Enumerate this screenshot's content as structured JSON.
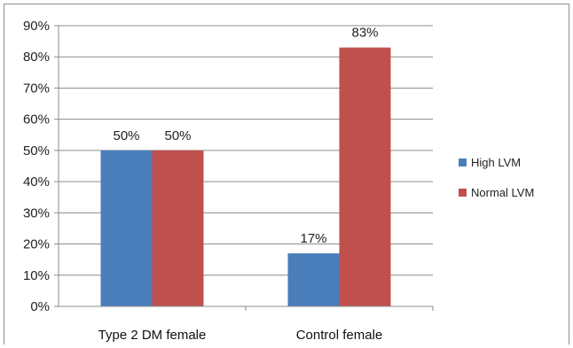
{
  "chart_data": {
    "type": "bar",
    "categories": [
      "Type 2 DM female",
      "Control female"
    ],
    "series": [
      {
        "name": "High LVM",
        "values": [
          50,
          17
        ],
        "labels": [
          "50%",
          "17%"
        ],
        "color": "#4a7ebb"
      },
      {
        "name": "Normal LVM",
        "values": [
          50,
          83
        ],
        "labels": [
          "50%",
          "83%"
        ],
        "color": "#c0504d"
      }
    ],
    "yticks": [
      "0%",
      "10%",
      "20%",
      "30%",
      "40%",
      "50%",
      "60%",
      "70%",
      "80%",
      "90%"
    ],
    "ylim": [
      0,
      90
    ],
    "grid": true,
    "legend_position": "right"
  }
}
